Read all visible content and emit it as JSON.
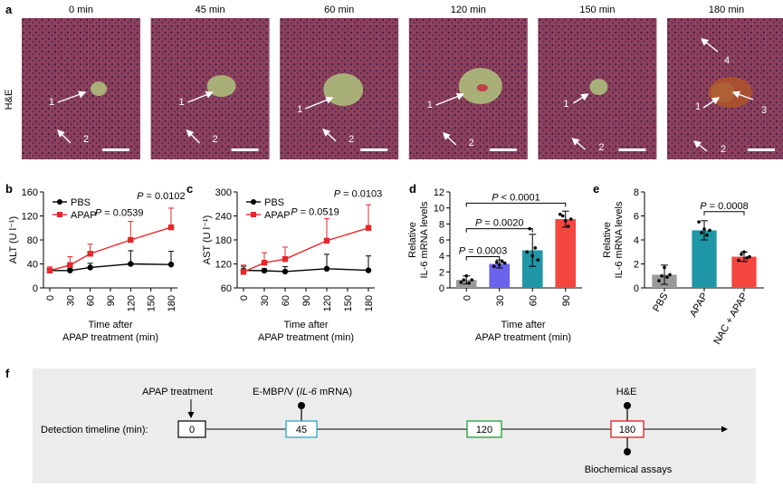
{
  "panel_labels": {
    "a": "a",
    "b": "b",
    "c": "c",
    "d": "d",
    "e": "e",
    "f": "f"
  },
  "panel_a": {
    "row_label": "H&E",
    "tiles": [
      {
        "time": "0 min",
        "arrows": [
          "1",
          "2"
        ]
      },
      {
        "time": "45 min",
        "arrows": [
          "1",
          "2"
        ]
      },
      {
        "time": "60 min",
        "arrows": [
          "1",
          "2"
        ]
      },
      {
        "time": "120 min",
        "arrows": [
          "1",
          "2"
        ]
      },
      {
        "time": "150 min",
        "arrows": [
          "1",
          "2"
        ]
      },
      {
        "time": "180 min",
        "arrows": [
          "4",
          "1",
          "3",
          "2"
        ]
      }
    ],
    "colors": {
      "tissue": "#8a3f5a",
      "vessel": "#a8b078",
      "necrosis": "#b0542a"
    }
  },
  "chart_data": [
    {
      "panel": "b",
      "type": "line",
      "ylabel": "ALT (U l⁻¹)",
      "xlabel_lines": [
        "Time after",
        "APAP treatment (min)"
      ],
      "x": [
        0,
        30,
        60,
        90,
        120,
        150,
        180
      ],
      "ylim": [
        0,
        160
      ],
      "yticks": [
        0,
        40,
        80,
        120,
        160
      ],
      "series": [
        {
          "name": "PBS",
          "color": "#000000",
          "marker": "circle",
          "x": [
            0,
            30,
            60,
            120,
            180
          ],
          "y": [
            29,
            29,
            34,
            40,
            39
          ],
          "err": [
            3,
            3,
            7,
            22,
            22
          ]
        },
        {
          "name": "APAP",
          "color": "#e8262b",
          "marker": "square",
          "x": [
            0,
            30,
            60,
            120,
            180
          ],
          "y": [
            29,
            38,
            57,
            80,
            101
          ],
          "err": [
            6,
            14,
            16,
            31,
            32
          ]
        }
      ],
      "annotations": [
        {
          "text": "P = 0.0539",
          "x": 103,
          "y": 120
        },
        {
          "text": "P = 0.0102",
          "x": 165,
          "y": 148
        }
      ],
      "legend": "top-left"
    },
    {
      "panel": "c",
      "type": "line",
      "ylabel": "AST (U l⁻¹)",
      "xlabel_lines": [
        "Time after",
        "APAP treatment (min)"
      ],
      "x": [
        0,
        30,
        60,
        90,
        120,
        150,
        180
      ],
      "ylim": [
        60,
        300
      ],
      "yticks": [
        60,
        120,
        180,
        240,
        300
      ],
      "series": [
        {
          "name": "PBS",
          "color": "#000000",
          "marker": "circle",
          "x": [
            0,
            30,
            60,
            120,
            180
          ],
          "y": [
            104,
            103,
            101,
            108,
            104
          ],
          "err": [
            10,
            5,
            12,
            36,
            36
          ]
        },
        {
          "name": "APAP",
          "color": "#e8262b",
          "marker": "square",
          "x": [
            0,
            30,
            60,
            120,
            180
          ],
          "y": [
            100,
            123,
            132,
            178,
            210
          ],
          "err": [
            17,
            25,
            30,
            55,
            58
          ]
        }
      ],
      "annotations": [
        {
          "text": "P = 0.0519",
          "x": 103,
          "y": 242
        },
        {
          "text": "P = 0.0103",
          "x": 165,
          "y": 288
        }
      ],
      "legend": "top-left"
    },
    {
      "panel": "d",
      "type": "bar",
      "ylabel_lines": [
        "Relative",
        "IL-6 mRNA levels"
      ],
      "xlabel_lines": [
        "Time after",
        "APAP treatment (min)"
      ],
      "categories": [
        "0",
        "30",
        "60",
        "90"
      ],
      "values": [
        1.0,
        3.0,
        4.7,
        8.6
      ],
      "err": [
        0.5,
        0.5,
        2.0,
        1.0
      ],
      "points": [
        [
          0.7,
          1.0,
          1.5,
          0.6,
          1.0
        ],
        [
          2.7,
          3.2,
          2.9,
          3.3,
          3.1
        ],
        [
          4.5,
          7.4,
          4.0,
          5.0,
          3.5
        ],
        [
          9.2,
          9.0,
          8.4,
          7.7,
          8.6
        ]
      ],
      "colors": [
        "#9a9a9a",
        "#6b63ec",
        "#1f97a6",
        "#f3463f"
      ],
      "ylim": [
        0,
        12
      ],
      "yticks": [
        0,
        2,
        4,
        6,
        8,
        10,
        12
      ],
      "brackets": [
        {
          "text": "P = 0.0003",
          "from": 0,
          "to": 1
        },
        {
          "text": "P = 0.0020",
          "from": 0,
          "to": 2
        },
        {
          "text": "P < 0.0001",
          "from": 0,
          "to": 3
        }
      ]
    },
    {
      "panel": "e",
      "type": "bar",
      "ylabel_lines": [
        "Relative",
        "IL-6 mRNA levels"
      ],
      "categories": [
        "PBS",
        "APAP",
        "NAC + APAP"
      ],
      "values": [
        1.1,
        4.8,
        2.6
      ],
      "err": [
        0.8,
        0.8,
        0.4
      ],
      "points": [
        [
          0.6,
          1.0,
          1.7,
          0.9,
          1.1
        ],
        [
          5.5,
          4.6,
          4.9,
          4.4,
          4.8
        ],
        [
          2.3,
          2.8,
          3.0,
          2.5,
          2.6
        ]
      ],
      "colors": [
        "#9a9a9a",
        "#1f97a6",
        "#f3463f"
      ],
      "ylim": [
        0,
        8
      ],
      "yticks": [
        0,
        2,
        4,
        6,
        8
      ],
      "brackets": [
        {
          "text": "P = 0.0008",
          "from": 1,
          "to": 2
        }
      ]
    }
  ],
  "panel_f": {
    "timeline_label": "Detection timeline (min):",
    "boxes": [
      {
        "value": "0",
        "color": "#000000"
      },
      {
        "value": "45",
        "color": "#3aaecb"
      },
      {
        "value": "120",
        "color": "#27a844"
      },
      {
        "value": "180",
        "color": "#e8262b"
      }
    ],
    "apap_label": "APAP treatment",
    "embp_prefix": "E-MBP/V (",
    "embp_gene": "IL-6",
    "embp_suffix": " mRNA)",
    "he_label": "H&E",
    "biochem_label": "Biochemical assays"
  }
}
